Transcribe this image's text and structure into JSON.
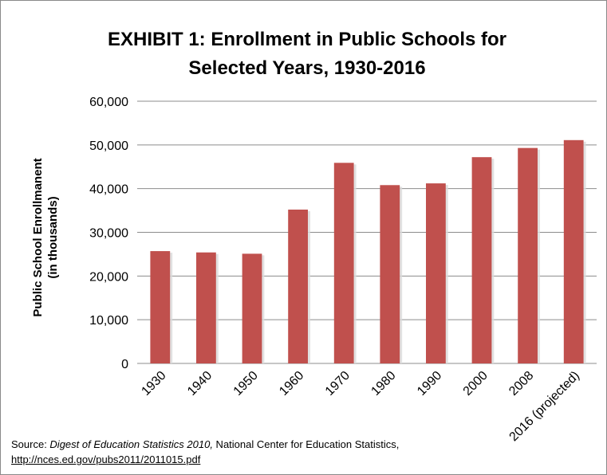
{
  "chart_data": {
    "type": "bar",
    "title_line1": "EXHIBIT 1: Enrollment in Public Schools for",
    "title_line2": "Selected Years, 1930-2016",
    "ylabel_line1": "Public School Enrollmanent",
    "ylabel_line2": "(in thousands)",
    "xlabel": "",
    "categories": [
      "1930",
      "1940",
      "1950",
      "1960",
      "1970",
      "1980",
      "1990",
      "2000",
      "2008",
      "2016 (projected)"
    ],
    "values": [
      25700,
      25400,
      25100,
      35200,
      45900,
      40800,
      41200,
      47200,
      49300,
      51100
    ],
    "ylim": [
      0,
      60000
    ],
    "yticks": [
      0,
      10000,
      20000,
      30000,
      40000,
      50000,
      60000
    ],
    "ytick_labels": [
      "0",
      "10,000",
      "20,000",
      "30,000",
      "40,000",
      "50,000",
      "60,000"
    ],
    "grid": true,
    "bar_color": "#C0504D",
    "grid_color": "#8c8c8c"
  },
  "source": {
    "prefix": "Source: ",
    "title": "Digest of Education Statistics 2010,",
    "org": " National Center for Education Statistics,",
    "link": "http://nces.ed.gov/pubs2011/2011015.pdf"
  }
}
